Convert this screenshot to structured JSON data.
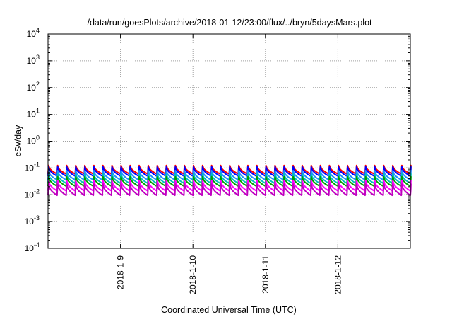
{
  "chart_data": {
    "type": "line",
    "title": "/data/run/goesPlots/archive/2018-01-12/23:00/flux/../bryn/5daysMars.plot",
    "xlabel": "Coordinated Universal Time (UTC)",
    "ylabel": "cSv/day",
    "yscale": "log",
    "ylim": [
      0.0001,
      10000
    ],
    "y_ticks": [
      {
        "base": "10",
        "exp": "-4"
      },
      {
        "base": "10",
        "exp": "-3"
      },
      {
        "base": "10",
        "exp": "-2"
      },
      {
        "base": "10",
        "exp": "-1"
      },
      {
        "base": "10",
        "exp": "0"
      },
      {
        "base": "10",
        "exp": "1"
      },
      {
        "base": "10",
        "exp": "2"
      },
      {
        "base": "10",
        "exp": "3"
      },
      {
        "base": "10",
        "exp": "4"
      }
    ],
    "xlim": [
      "2018-01-08T00:00",
      "2018-01-13T00:00"
    ],
    "x_ticks": [
      "2018-1-9",
      "2018-1-10",
      "2018-1-11",
      "2018-1-12"
    ],
    "grid": true,
    "pattern": "sawtooth",
    "sawtooth_period_hours": 3,
    "series": [
      {
        "color": "#ff0000",
        "peak": 0.125,
        "trough": 0.06
      },
      {
        "color": "#0000ff",
        "peak": 0.11,
        "trough": 0.05
      },
      {
        "color": "#1e90ff",
        "peak": 0.08,
        "trough": 0.036
      },
      {
        "color": "#00bfbf",
        "peak": 0.06,
        "trough": 0.027
      },
      {
        "color": "#00a000",
        "peak": 0.047,
        "trough": 0.021
      },
      {
        "color": "#ff00ff",
        "peak": 0.034,
        "trough": 0.014
      },
      {
        "color": "#c000c0",
        "peak": 0.025,
        "trough": 0.0095
      }
    ]
  }
}
